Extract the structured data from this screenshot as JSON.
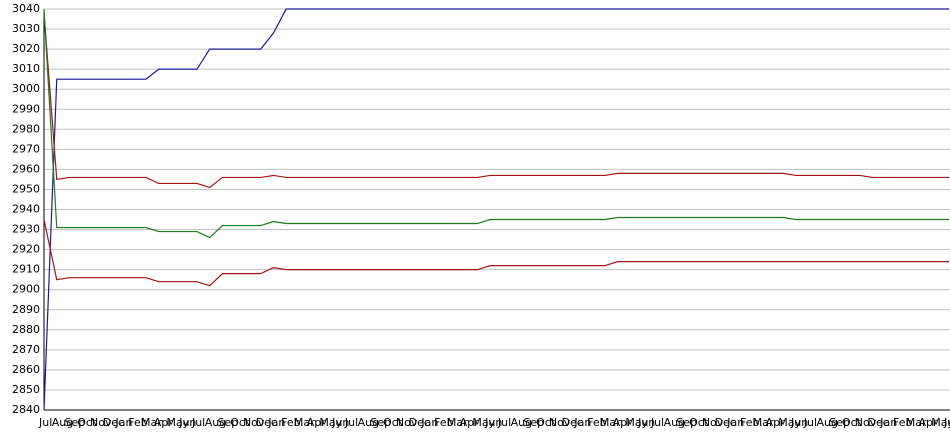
{
  "chart_data": {
    "type": "line",
    "categories": [
      "Jul",
      "Aug",
      "Sep",
      "Oct",
      "Nov",
      "Dec",
      "Jan",
      "Feb",
      "Mar",
      "Apr",
      "May",
      "Jun",
      "Jul",
      "Aug",
      "Sep",
      "Oct",
      "Nov",
      "Dec",
      "Jan",
      "Feb",
      "Mar",
      "Apr",
      "May",
      "Jun",
      "Jul",
      "Aug",
      "Sep",
      "Oct",
      "Nov",
      "Dec",
      "Jan",
      "Feb",
      "Mar",
      "Apr",
      "May",
      "Jun",
      "Jul",
      "Aug",
      "Sep",
      "Oct",
      "Nov",
      "Dec",
      "Jan",
      "Feb",
      "Mar",
      "Apr",
      "May",
      "Jun",
      "Jul",
      "Aug",
      "Sep",
      "Oct",
      "Nov",
      "Dec",
      "Jan",
      "Feb",
      "Mar",
      "Apr",
      "May",
      "Jun",
      "Jul",
      "Aug",
      "Sep",
      "Oct",
      "Nov",
      "Dec",
      "Jan",
      "Feb",
      "Mar",
      "Apr",
      "May",
      "Jun"
    ],
    "series": [
      {
        "color": "#1a1a99",
        "values": [
          2840,
          3005,
          3005,
          3005,
          3005,
          3005,
          3005,
          3005,
          3005,
          3010,
          3010,
          3010,
          3010,
          3020,
          3020,
          3020,
          3020,
          3020,
          3028,
          3040,
          3040,
          3040,
          3040,
          3040,
          3040,
          3040,
          3040,
          3040,
          3040,
          3040,
          3040,
          3040,
          3040,
          3040,
          3040,
          3040,
          3040,
          3040,
          3040,
          3040,
          3040,
          3040,
          3040,
          3040,
          3040,
          3040,
          3040,
          3040,
          3040,
          3040,
          3040,
          3040,
          3040,
          3040,
          3040,
          3040,
          3040,
          3040,
          3040,
          3040,
          3040,
          3040,
          3040,
          3040,
          3040,
          3040,
          3040,
          3040,
          3040,
          3040,
          3040,
          3040
        ]
      },
      {
        "color": "#a31515",
        "values": [
          3038,
          2955,
          2956,
          2956,
          2956,
          2956,
          2956,
          2956,
          2956,
          2953,
          2953,
          2953,
          2953,
          2951,
          2956,
          2956,
          2956,
          2956,
          2957,
          2956,
          2956,
          2956,
          2956,
          2956,
          2956,
          2956,
          2956,
          2956,
          2956,
          2956,
          2956,
          2956,
          2956,
          2956,
          2956,
          2957,
          2957,
          2957,
          2957,
          2957,
          2957,
          2957,
          2957,
          2957,
          2957,
          2958,
          2958,
          2958,
          2958,
          2958,
          2958,
          2958,
          2958,
          2958,
          2958,
          2958,
          2958,
          2958,
          2958,
          2957,
          2957,
          2957,
          2957,
          2957,
          2957,
          2956,
          2956,
          2956,
          2956,
          2956,
          2956,
          2956
        ]
      },
      {
        "color": "#1a7a1a",
        "values": [
          3040,
          2931,
          2931,
          2931,
          2931,
          2931,
          2931,
          2931,
          2931,
          2929,
          2929,
          2929,
          2929,
          2926,
          2932,
          2932,
          2932,
          2932,
          2934,
          2933,
          2933,
          2933,
          2933,
          2933,
          2933,
          2933,
          2933,
          2933,
          2933,
          2933,
          2933,
          2933,
          2933,
          2933,
          2933,
          2935,
          2935,
          2935,
          2935,
          2935,
          2935,
          2935,
          2935,
          2935,
          2935,
          2936,
          2936,
          2936,
          2936,
          2936,
          2936,
          2936,
          2936,
          2936,
          2936,
          2936,
          2936,
          2936,
          2936,
          2935,
          2935,
          2935,
          2935,
          2935,
          2935,
          2935,
          2935,
          2935,
          2935,
          2935,
          2935,
          2935
        ]
      },
      {
        "color": "#a31515",
        "values": [
          2935,
          2905,
          2906,
          2906,
          2906,
          2906,
          2906,
          2906,
          2906,
          2904,
          2904,
          2904,
          2904,
          2902,
          2908,
          2908,
          2908,
          2908,
          2911,
          2910,
          2910,
          2910,
          2910,
          2910,
          2910,
          2910,
          2910,
          2910,
          2910,
          2910,
          2910,
          2910,
          2910,
          2910,
          2910,
          2912,
          2912,
          2912,
          2912,
          2912,
          2912,
          2912,
          2912,
          2912,
          2912,
          2914,
          2914,
          2914,
          2914,
          2914,
          2914,
          2914,
          2914,
          2914,
          2914,
          2914,
          2914,
          2914,
          2914,
          2914,
          2914,
          2914,
          2914,
          2914,
          2914,
          2914,
          2914,
          2914,
          2914,
          2914,
          2914,
          2914
        ]
      }
    ],
    "ylim": [
      2840,
      3040
    ],
    "yticks": [
      2840,
      2850,
      2860,
      2870,
      2880,
      2890,
      2900,
      2910,
      2920,
      2930,
      2940,
      2950,
      2960,
      2970,
      2980,
      2990,
      3000,
      3010,
      3020,
      3030,
      3040
    ],
    "grid": true
  }
}
